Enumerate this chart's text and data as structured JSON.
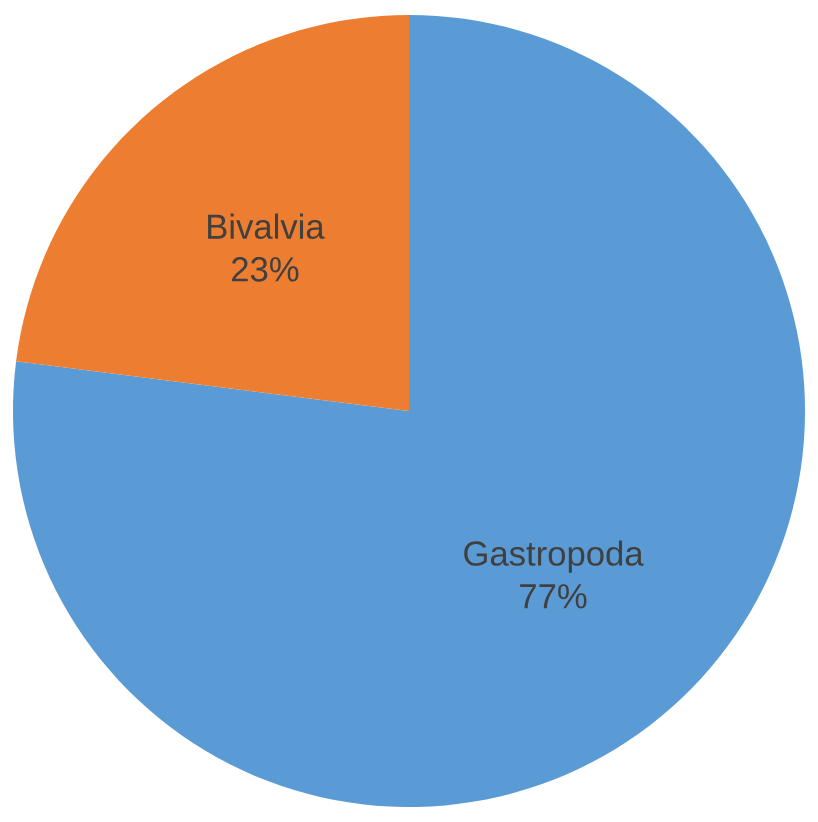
{
  "chart_data": {
    "type": "pie",
    "categories": [
      "Gastropoda",
      "Bivalvia"
    ],
    "values": [
      77,
      23
    ],
    "value_labels": [
      "77%",
      "23%"
    ],
    "colors": [
      "#5b9bd5",
      "#ed7d31"
    ]
  }
}
